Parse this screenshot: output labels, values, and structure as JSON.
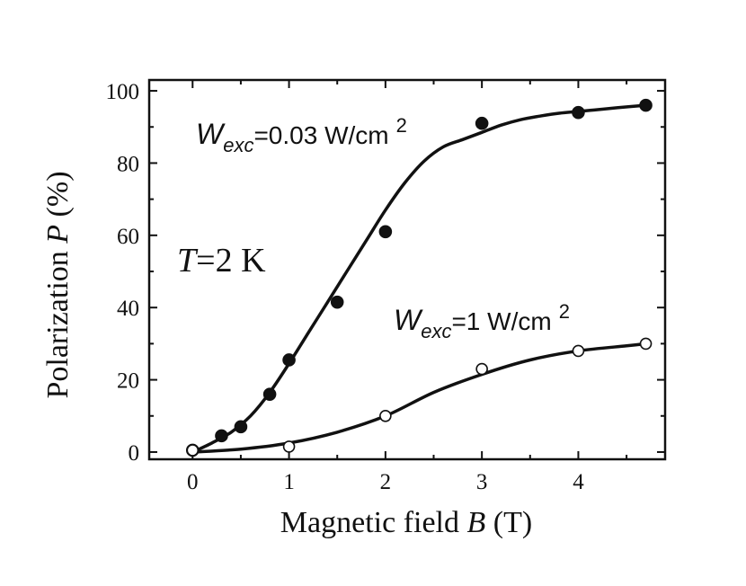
{
  "chart_data": {
    "type": "scatter",
    "title": "",
    "xlabel": {
      "text": "Magnetic field ",
      "symbol": "B",
      "unit": " (T)"
    },
    "ylabel": {
      "text": "Polarization ",
      "symbol": "P",
      "unit": " (%)"
    },
    "xlim": [
      -0.45,
      4.9
    ],
    "ylim": [
      -2,
      103
    ],
    "xticks": [
      0,
      1,
      2,
      3,
      4
    ],
    "yticks": [
      0,
      20,
      40,
      60,
      80,
      100
    ],
    "xtick_labels": [
      "0",
      "1",
      "2",
      "3",
      "4"
    ],
    "ytick_labels": [
      "0",
      "20",
      "40",
      "60",
      "80",
      "100"
    ],
    "grid": false,
    "series": [
      {
        "name": "W_exc=0.03 W/cm²",
        "marker": "filled-circle",
        "x": [
          0,
          0.3,
          0.5,
          0.8,
          1.0,
          1.5,
          2.0,
          3.0,
          4.0,
          4.7
        ],
        "y": [
          0.5,
          4.5,
          7,
          16,
          25.5,
          41.5,
          61,
          91,
          94,
          96
        ],
        "fit_x": [
          0,
          0.2,
          0.4,
          0.6,
          0.8,
          1.0,
          1.2,
          1.4,
          1.6,
          1.8,
          2.0,
          2.2,
          2.4,
          2.6,
          2.8,
          3.0,
          3.2,
          3.4,
          3.6,
          3.8,
          4.0,
          4.2,
          4.4,
          4.7
        ],
        "fit_y": [
          0,
          2.5,
          5.5,
          10,
          16.5,
          24.5,
          33,
          41.5,
          50,
          58.5,
          67,
          74.5,
          80.5,
          84.5,
          86.5,
          88.5,
          90.5,
          92,
          93,
          93.8,
          94.3,
          94.8,
          95.3,
          96
        ]
      },
      {
        "name": "W_exc=1 W/cm²",
        "marker": "open-circle",
        "x": [
          0,
          1.0,
          2.0,
          3.0,
          4.0,
          4.7
        ],
        "y": [
          0.5,
          1.5,
          10,
          23,
          28,
          30
        ],
        "fit_x": [
          0,
          0.5,
          1.0,
          1.5,
          2.0,
          2.5,
          3.0,
          3.5,
          4.0,
          4.5,
          4.7
        ],
        "fit_y": [
          0,
          0.8,
          2.5,
          5.5,
          10,
          16.5,
          21.5,
          25.5,
          28,
          29.4,
          30
        ]
      }
    ],
    "annotations": [
      {
        "base": "W",
        "sub": "exc",
        "rest": "=0.03 W/cm",
        "sup": "2"
      },
      {
        "base": "W",
        "sub": "exc",
        "rest": "=1 W/cm",
        "sup": "2"
      },
      {
        "italic": "T",
        "rest": "=2 K"
      }
    ]
  }
}
